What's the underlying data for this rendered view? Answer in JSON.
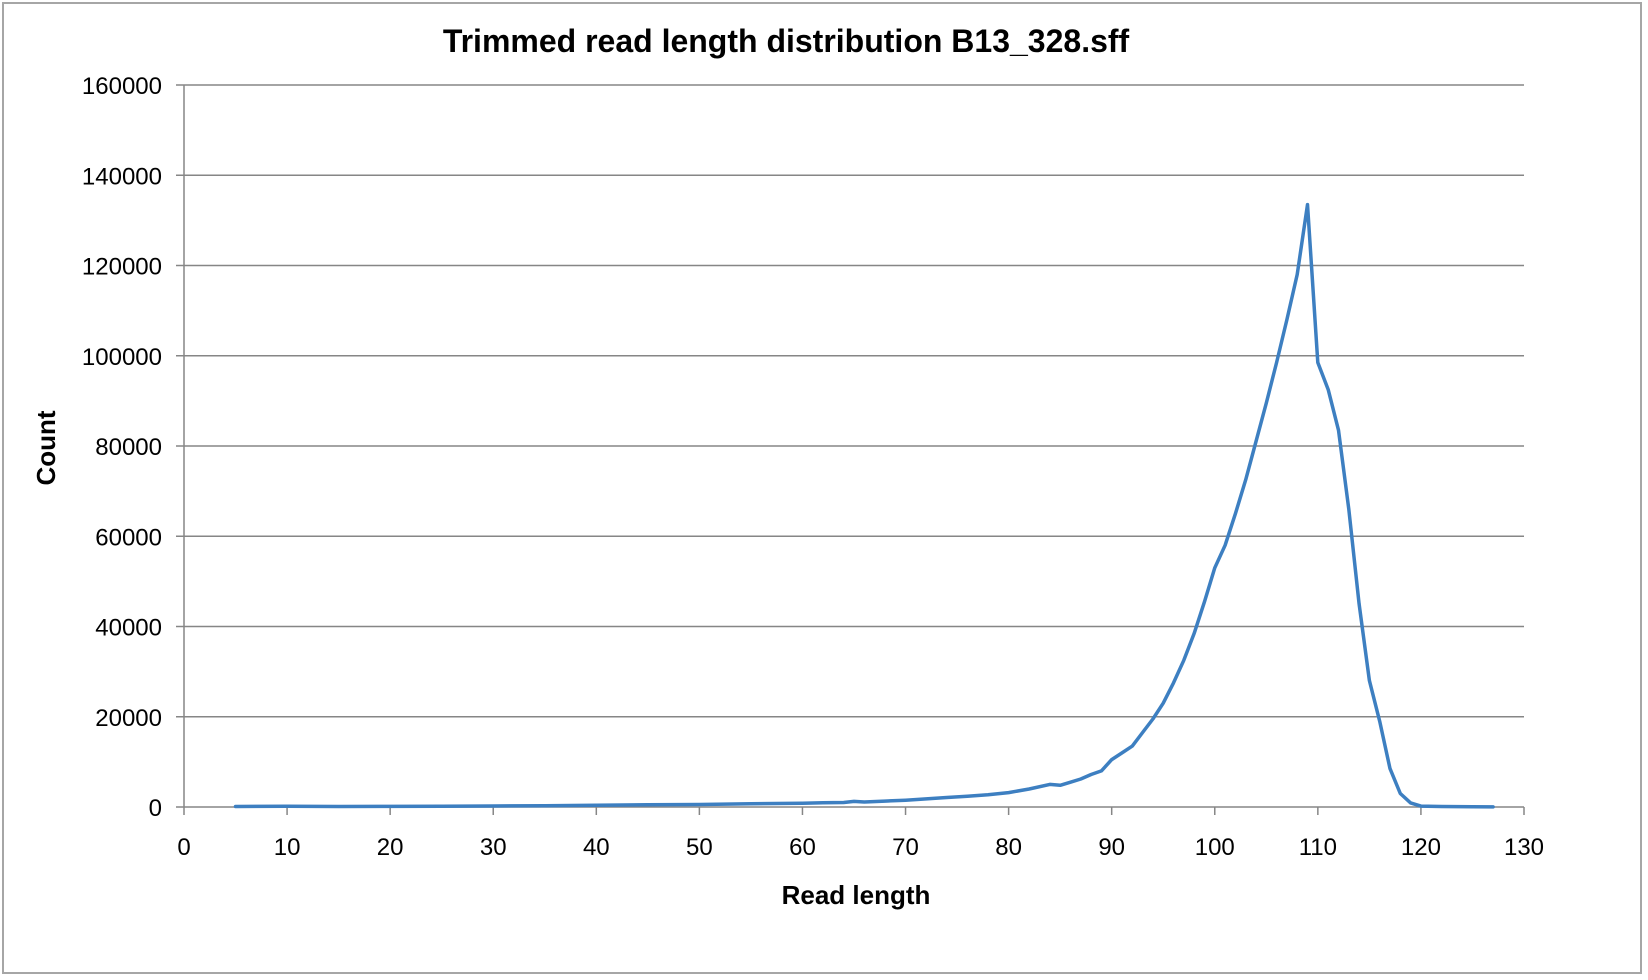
{
  "chart_data": {
    "type": "line",
    "title": "Trimmed read length distribution B13_328.sff",
    "xlabel": "Read length",
    "ylabel": "Count",
    "xlim": [
      0,
      130
    ],
    "ylim": [
      0,
      160000
    ],
    "x_ticks": [
      0,
      10,
      20,
      30,
      40,
      50,
      60,
      70,
      80,
      90,
      100,
      110,
      120,
      130
    ],
    "y_ticks": [
      0,
      20000,
      40000,
      60000,
      80000,
      100000,
      120000,
      140000,
      160000
    ],
    "grid": "horizontal",
    "legend": "none",
    "series": [
      {
        "color": "#3d7fc1",
        "x": [
          5,
          10,
          15,
          20,
          25,
          30,
          35,
          40,
          45,
          50,
          55,
          60,
          62,
          64,
          65,
          66,
          68,
          70,
          72,
          74,
          76,
          78,
          80,
          82,
          84,
          85,
          86,
          87,
          88,
          89,
          90,
          91,
          92,
          93,
          94,
          95,
          96,
          97,
          98,
          99,
          100,
          101,
          102,
          103,
          104,
          105,
          106,
          107,
          108,
          109,
          110,
          111,
          112,
          113,
          114,
          115,
          116,
          117,
          118,
          119,
          120,
          122,
          125,
          127
        ],
        "y": [
          100,
          150,
          120,
          130,
          180,
          220,
          280,
          380,
          480,
          560,
          700,
          850,
          950,
          1000,
          1250,
          1100,
          1300,
          1500,
          1800,
          2100,
          2400,
          2700,
          3200,
          4000,
          5000,
          4800,
          5500,
          6200,
          7200,
          8000,
          10500,
          12000,
          13500,
          16500,
          19500,
          23000,
          27500,
          32500,
          38500,
          45500,
          53000,
          58000,
          65000,
          72500,
          81000,
          89500,
          98500,
          108000,
          118000,
          133500,
          98500,
          92500,
          83500,
          66000,
          45000,
          28000,
          19000,
          8500,
          3000,
          900,
          200,
          100,
          50,
          30
        ]
      }
    ]
  }
}
